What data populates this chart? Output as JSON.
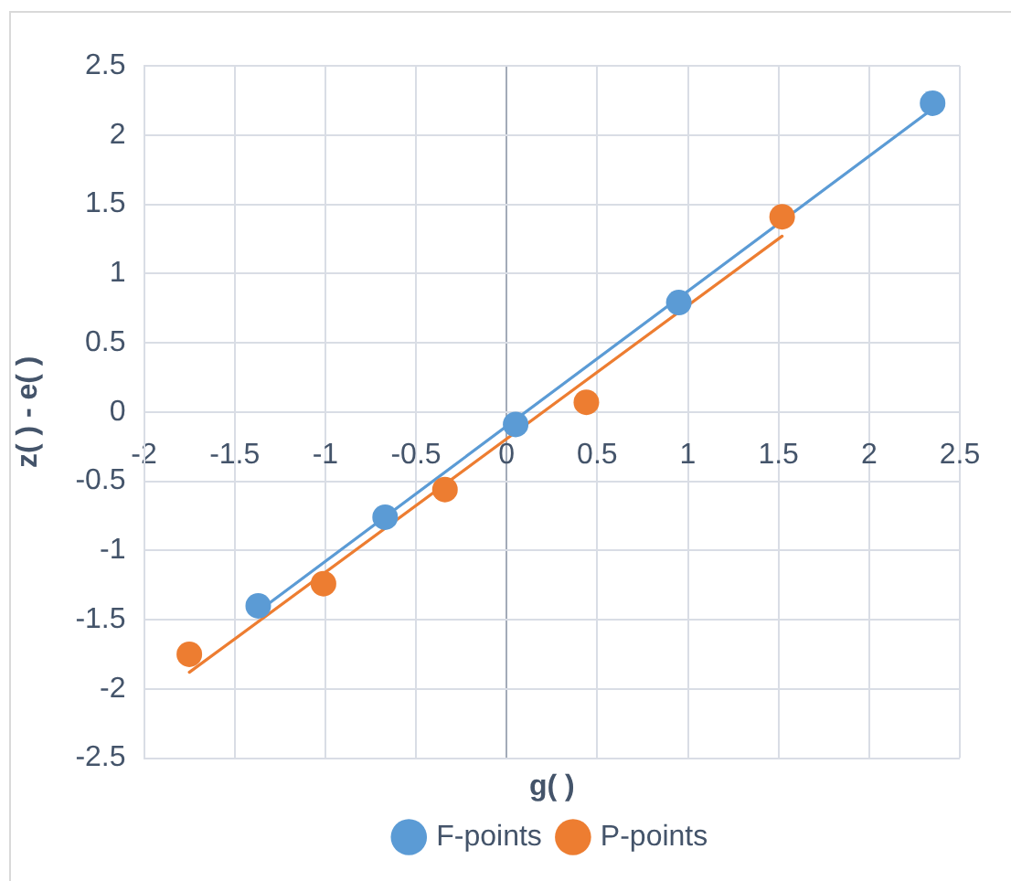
{
  "chart_data": {
    "type": "scatter",
    "xlabel": "g( )",
    "ylabel": "z( ) - e( )",
    "xlim": [
      -2,
      2.5
    ],
    "ylim": [
      -2.5,
      2.5
    ],
    "xticks": [
      -2,
      -1.5,
      -1,
      -0.5,
      0,
      0.5,
      1,
      1.5,
      2,
      2.5
    ],
    "yticks": [
      -2.5,
      -2,
      -1.5,
      -1,
      -0.5,
      0,
      0.5,
      1,
      1.5,
      2,
      2.5
    ],
    "grid": true,
    "legend": "bottom",
    "marker": "circle",
    "series": [
      {
        "name": "F-points",
        "color": "#5b9bd5",
        "x": [
          -1.37,
          -0.67,
          0.05,
          0.95,
          2.35
        ],
        "values": [
          -1.4,
          -0.76,
          -0.09,
          0.79,
          2.23
        ]
      },
      {
        "name": "P-points",
        "color": "#ed7d31",
        "x": [
          -1.75,
          -1.01,
          -0.34,
          0.44,
          1.52
        ],
        "values": [
          -1.75,
          -1.24,
          -0.56,
          0.07,
          1.41
        ]
      },
      {
        "type": "line",
        "color": "#5b9bd5",
        "marker": "none",
        "x": [
          -1.37,
          2.35
        ],
        "values": [
          -1.44,
          2.19
        ]
      },
      {
        "type": "line",
        "color": "#ed7d31",
        "marker": "none",
        "x": [
          -1.75,
          1.52
        ],
        "values": [
          -1.88,
          1.27
        ]
      }
    ]
  }
}
